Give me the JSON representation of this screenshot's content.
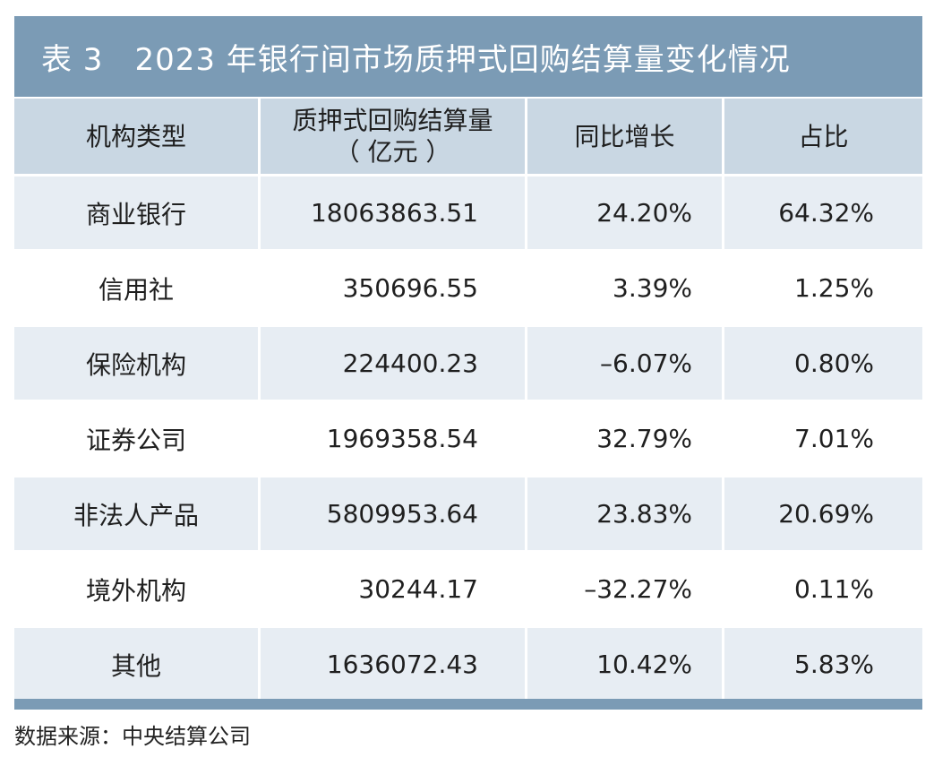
{
  "title": "表 3　2023 年银行间市场质押式回购结算量变化情况",
  "headers": {
    "col1": "机构类型",
    "col2_line1": "质押式回购结算量",
    "col2_line2": "（ 亿元 ）",
    "col3": "同比增长",
    "col4": "占比"
  },
  "rows": [
    {
      "type": "商业银行",
      "volume": "18063863.51",
      "growth": "24.20%",
      "share": "64.32%"
    },
    {
      "type": "信用社",
      "volume": "350696.55",
      "growth": "3.39%",
      "share": "1.25%"
    },
    {
      "type": "保险机构",
      "volume": "224400.23",
      "growth": "–6.07%",
      "share": "0.80%"
    },
    {
      "type": "证券公司",
      "volume": "1969358.54",
      "growth": "32.79%",
      "share": "7.01%"
    },
    {
      "type": "非法人产品",
      "volume": "5809953.64",
      "growth": "23.83%",
      "share": "20.69%"
    },
    {
      "type": "境外机构",
      "volume": "30244.17",
      "growth": "–32.27%",
      "share": "0.11%"
    },
    {
      "type": "其他",
      "volume": "1636072.43",
      "growth": "10.42%",
      "share": "5.83%"
    }
  ],
  "source": "数据来源：中央结算公司",
  "colors": {
    "title_bg": "#7b9bb5",
    "header_bg": "#c9d7e3",
    "shaded_row_bg": "#e7edf3"
  }
}
